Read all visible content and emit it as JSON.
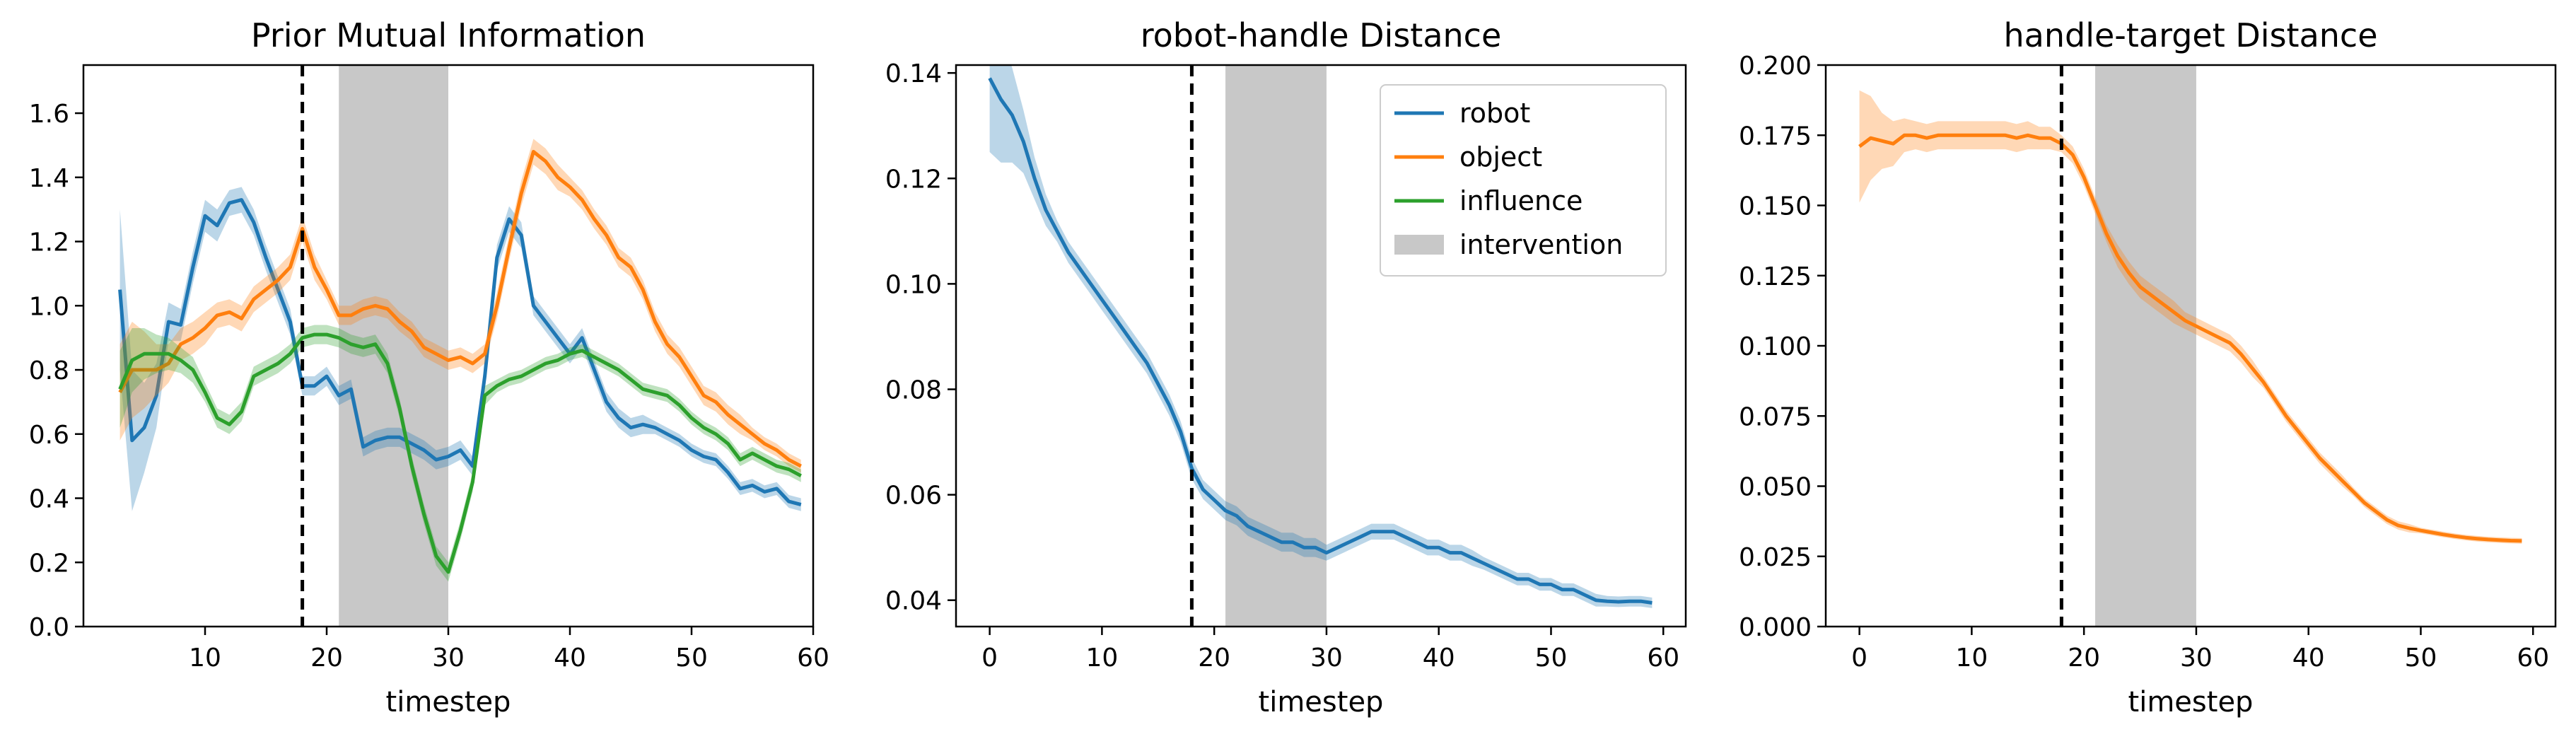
{
  "chart_data": [
    {
      "type": "line",
      "title": "Prior Mutual Information",
      "xlabel": "timestep",
      "ylabel": "",
      "xlim": [
        0,
        60
      ],
      "ylim": [
        0,
        1.75
      ],
      "xticks": [
        10,
        20,
        30,
        40,
        50,
        60
      ],
      "yticks": [
        0.0,
        0.2,
        0.4,
        0.6,
        0.8,
        1.0,
        1.2,
        1.4,
        1.6
      ],
      "ytick_labels": [
        "0.0",
        "0.2",
        "0.4",
        "0.6",
        "0.8",
        "1.0",
        "1.2",
        "1.4",
        "1.6"
      ],
      "grid": false,
      "vline": 18,
      "intervention_span": [
        21,
        30
      ],
      "series": [
        {
          "name": "robot",
          "color": "#1f77b4",
          "x": [
            3,
            4,
            5,
            6,
            7,
            8,
            9,
            10,
            11,
            12,
            13,
            14,
            15,
            16,
            17,
            18,
            19,
            20,
            21,
            22,
            23,
            24,
            25,
            26,
            27,
            28,
            29,
            30,
            31,
            32,
            33,
            34,
            35,
            36,
            37,
            38,
            39,
            40,
            41,
            42,
            43,
            44,
            45,
            46,
            47,
            48,
            49,
            50,
            51,
            52,
            53,
            54,
            55,
            56,
            57,
            58,
            59
          ],
          "y": [
            1.05,
            0.58,
            0.62,
            0.72,
            0.95,
            0.94,
            1.12,
            1.28,
            1.25,
            1.32,
            1.33,
            1.26,
            1.15,
            1.05,
            0.95,
            0.75,
            0.75,
            0.78,
            0.72,
            0.74,
            0.56,
            0.58,
            0.59,
            0.59,
            0.57,
            0.55,
            0.52,
            0.53,
            0.55,
            0.5,
            0.78,
            1.15,
            1.27,
            1.22,
            1.0,
            0.95,
            0.9,
            0.85,
            0.9,
            0.8,
            0.7,
            0.65,
            0.62,
            0.63,
            0.62,
            0.6,
            0.58,
            0.55,
            0.53,
            0.52,
            0.48,
            0.43,
            0.44,
            0.42,
            0.43,
            0.39,
            0.38
          ],
          "band": [
            0.25,
            0.22,
            0.14,
            0.1,
            0.06,
            0.05,
            0.05,
            0.05,
            0.05,
            0.04,
            0.04,
            0.04,
            0.04,
            0.04,
            0.04,
            0.03,
            0.03,
            0.03,
            0.03,
            0.03,
            0.03,
            0.03,
            0.03,
            0.03,
            0.03,
            0.03,
            0.03,
            0.03,
            0.03,
            0.03,
            0.03,
            0.04,
            0.04,
            0.04,
            0.03,
            0.03,
            0.03,
            0.03,
            0.03,
            0.03,
            0.03,
            0.03,
            0.03,
            0.03,
            0.02,
            0.02,
            0.02,
            0.02,
            0.02,
            0.02,
            0.02,
            0.02,
            0.02,
            0.02,
            0.02,
            0.02,
            0.02
          ]
        },
        {
          "name": "object",
          "color": "#ff7f0e",
          "x": [
            3,
            4,
            5,
            6,
            7,
            8,
            9,
            10,
            11,
            12,
            13,
            14,
            15,
            16,
            17,
            18,
            19,
            20,
            21,
            22,
            23,
            24,
            25,
            26,
            27,
            28,
            29,
            30,
            31,
            32,
            33,
            34,
            35,
            36,
            37,
            38,
            39,
            40,
            41,
            42,
            43,
            44,
            45,
            46,
            47,
            48,
            49,
            50,
            51,
            52,
            53,
            54,
            55,
            56,
            57,
            58,
            59
          ],
          "y": [
            0.73,
            0.8,
            0.8,
            0.8,
            0.82,
            0.88,
            0.9,
            0.93,
            0.97,
            0.98,
            0.96,
            1.02,
            1.05,
            1.08,
            1.12,
            1.24,
            1.12,
            1.05,
            0.97,
            0.97,
            0.99,
            1.0,
            0.99,
            0.95,
            0.92,
            0.87,
            0.85,
            0.83,
            0.84,
            0.82,
            0.85,
            1.0,
            1.18,
            1.35,
            1.48,
            1.45,
            1.4,
            1.37,
            1.33,
            1.27,
            1.22,
            1.15,
            1.12,
            1.05,
            0.95,
            0.88,
            0.84,
            0.78,
            0.72,
            0.7,
            0.66,
            0.63,
            0.6,
            0.57,
            0.55,
            0.52,
            0.5
          ],
          "band": [
            0.15,
            0.15,
            0.12,
            0.08,
            0.06,
            0.05,
            0.05,
            0.05,
            0.04,
            0.04,
            0.04,
            0.04,
            0.04,
            0.04,
            0.04,
            0.04,
            0.04,
            0.03,
            0.03,
            0.03,
            0.03,
            0.03,
            0.03,
            0.03,
            0.03,
            0.03,
            0.03,
            0.03,
            0.03,
            0.03,
            0.03,
            0.04,
            0.04,
            0.04,
            0.04,
            0.04,
            0.04,
            0.03,
            0.03,
            0.03,
            0.03,
            0.03,
            0.03,
            0.03,
            0.03,
            0.03,
            0.03,
            0.03,
            0.03,
            0.03,
            0.03,
            0.03,
            0.02,
            0.02,
            0.02,
            0.02,
            0.02
          ]
        },
        {
          "name": "influence",
          "color": "#2ca02c",
          "x": [
            3,
            4,
            5,
            6,
            7,
            8,
            9,
            10,
            11,
            12,
            13,
            14,
            15,
            16,
            17,
            18,
            19,
            20,
            21,
            22,
            23,
            24,
            25,
            26,
            27,
            28,
            29,
            30,
            31,
            32,
            33,
            34,
            35,
            36,
            37,
            38,
            39,
            40,
            41,
            42,
            43,
            44,
            45,
            46,
            47,
            48,
            49,
            50,
            51,
            52,
            53,
            54,
            55,
            56,
            57,
            58,
            59
          ],
          "y": [
            0.74,
            0.83,
            0.85,
            0.85,
            0.85,
            0.83,
            0.8,
            0.73,
            0.65,
            0.63,
            0.67,
            0.78,
            0.8,
            0.82,
            0.85,
            0.9,
            0.91,
            0.91,
            0.9,
            0.88,
            0.87,
            0.88,
            0.82,
            0.68,
            0.5,
            0.35,
            0.22,
            0.17,
            0.3,
            0.45,
            0.72,
            0.75,
            0.77,
            0.78,
            0.8,
            0.82,
            0.83,
            0.85,
            0.86,
            0.84,
            0.82,
            0.8,
            0.77,
            0.74,
            0.73,
            0.72,
            0.69,
            0.65,
            0.62,
            0.6,
            0.57,
            0.52,
            0.54,
            0.52,
            0.5,
            0.49,
            0.47
          ],
          "band": [
            0.12,
            0.1,
            0.08,
            0.06,
            0.05,
            0.04,
            0.04,
            0.03,
            0.03,
            0.03,
            0.03,
            0.03,
            0.03,
            0.03,
            0.03,
            0.03,
            0.03,
            0.03,
            0.03,
            0.03,
            0.03,
            0.03,
            0.03,
            0.03,
            0.03,
            0.03,
            0.03,
            0.03,
            0.03,
            0.03,
            0.03,
            0.02,
            0.02,
            0.02,
            0.02,
            0.02,
            0.02,
            0.02,
            0.02,
            0.02,
            0.02,
            0.02,
            0.02,
            0.02,
            0.02,
            0.02,
            0.02,
            0.02,
            0.02,
            0.02,
            0.02,
            0.02,
            0.02,
            0.02,
            0.02,
            0.02,
            0.02
          ]
        }
      ]
    },
    {
      "type": "line",
      "title": "robot-handle Distance",
      "xlabel": "timestep",
      "ylabel": "",
      "xlim": [
        -3,
        62
      ],
      "ylim": [
        0.035,
        0.1415
      ],
      "xticks": [
        0,
        10,
        20,
        30,
        40,
        50,
        60
      ],
      "yticks": [
        0.04,
        0.06,
        0.08,
        0.1,
        0.12,
        0.14
      ],
      "ytick_labels": [
        "0.04",
        "0.06",
        "0.08",
        "0.10",
        "0.12",
        "0.14"
      ],
      "grid": false,
      "vline": 18,
      "intervention_span": [
        21,
        30
      ],
      "legend": {
        "location": "top-right",
        "entries": [
          {
            "label": "robot",
            "color": "#1f77b4",
            "kind": "line"
          },
          {
            "label": "object",
            "color": "#ff7f0e",
            "kind": "line"
          },
          {
            "label": "influence",
            "color": "#2ca02c",
            "kind": "line"
          },
          {
            "label": "intervention",
            "color": "#c8c8c8",
            "kind": "patch"
          }
        ]
      },
      "series": [
        {
          "name": "robot",
          "color": "#1f77b4",
          "x": [
            0,
            1,
            2,
            3,
            4,
            5,
            6,
            7,
            8,
            9,
            10,
            11,
            12,
            13,
            14,
            15,
            16,
            17,
            18,
            19,
            20,
            21,
            22,
            23,
            24,
            25,
            26,
            27,
            28,
            29,
            30,
            31,
            32,
            33,
            34,
            35,
            36,
            37,
            38,
            39,
            40,
            41,
            42,
            43,
            44,
            45,
            46,
            47,
            48,
            49,
            50,
            51,
            52,
            53,
            54,
            55,
            56,
            57,
            58,
            59
          ],
          "y": [
            0.139,
            0.135,
            0.132,
            0.127,
            0.12,
            0.114,
            0.11,
            0.106,
            0.103,
            0.1,
            0.097,
            0.094,
            0.091,
            0.088,
            0.085,
            0.081,
            0.077,
            0.072,
            0.065,
            0.061,
            0.059,
            0.057,
            0.056,
            0.054,
            0.053,
            0.052,
            0.051,
            0.051,
            0.05,
            0.05,
            0.049,
            0.05,
            0.051,
            0.052,
            0.053,
            0.053,
            0.053,
            0.052,
            0.051,
            0.05,
            0.05,
            0.049,
            0.049,
            0.048,
            0.047,
            0.046,
            0.045,
            0.044,
            0.044,
            0.043,
            0.043,
            0.042,
            0.042,
            0.041,
            0.04,
            0.0398,
            0.0397,
            0.0398,
            0.0398,
            0.0395
          ],
          "band": [
            0.014,
            0.012,
            0.009,
            0.006,
            0.004,
            0.003,
            0.002,
            0.002,
            0.002,
            0.002,
            0.002,
            0.002,
            0.002,
            0.002,
            0.002,
            0.002,
            0.002,
            0.002,
            0.002,
            0.0018,
            0.0018,
            0.0018,
            0.0018,
            0.0018,
            0.0018,
            0.0018,
            0.0018,
            0.0018,
            0.0018,
            0.0018,
            0.0015,
            0.0015,
            0.0015,
            0.0015,
            0.0015,
            0.0015,
            0.0015,
            0.0015,
            0.0015,
            0.0015,
            0.0015,
            0.0015,
            0.0015,
            0.0015,
            0.0012,
            0.0012,
            0.0012,
            0.0012,
            0.0012,
            0.0012,
            0.0012,
            0.0012,
            0.0012,
            0.0012,
            0.0012,
            0.001,
            0.001,
            0.001,
            0.001,
            0.001
          ]
        }
      ]
    },
    {
      "type": "line",
      "title": "handle-target Distance",
      "xlabel": "timestep",
      "ylabel": "",
      "xlim": [
        -3,
        62
      ],
      "ylim": [
        0,
        0.2
      ],
      "xticks": [
        0,
        10,
        20,
        30,
        40,
        50,
        60
      ],
      "yticks": [
        0.0,
        0.025,
        0.05,
        0.075,
        0.1,
        0.125,
        0.15,
        0.175,
        0.2
      ],
      "ytick_labels": [
        "0.000",
        "0.025",
        "0.050",
        "0.075",
        "0.100",
        "0.125",
        "0.150",
        "0.175",
        "0.200"
      ],
      "grid": false,
      "vline": 18,
      "intervention_span": [
        21,
        30
      ],
      "series": [
        {
          "name": "object",
          "color": "#ff7f0e",
          "x": [
            0,
            1,
            2,
            3,
            4,
            5,
            6,
            7,
            8,
            9,
            10,
            11,
            12,
            13,
            14,
            15,
            16,
            17,
            18,
            19,
            20,
            21,
            22,
            23,
            24,
            25,
            26,
            27,
            28,
            29,
            30,
            31,
            32,
            33,
            34,
            35,
            36,
            37,
            38,
            39,
            40,
            41,
            42,
            43,
            44,
            45,
            46,
            47,
            48,
            49,
            50,
            51,
            52,
            53,
            54,
            55,
            56,
            57,
            58,
            59
          ],
          "y": [
            0.171,
            0.174,
            0.173,
            0.172,
            0.175,
            0.175,
            0.174,
            0.175,
            0.175,
            0.175,
            0.175,
            0.175,
            0.175,
            0.175,
            0.174,
            0.175,
            0.174,
            0.174,
            0.172,
            0.168,
            0.16,
            0.15,
            0.14,
            0.132,
            0.126,
            0.121,
            0.118,
            0.115,
            0.112,
            0.109,
            0.107,
            0.105,
            0.103,
            0.101,
            0.097,
            0.092,
            0.087,
            0.081,
            0.075,
            0.07,
            0.065,
            0.06,
            0.056,
            0.052,
            0.048,
            0.044,
            0.041,
            0.038,
            0.036,
            0.035,
            0.0342,
            0.0335,
            0.0328,
            0.0322,
            0.0317,
            0.0313,
            0.031,
            0.0308,
            0.0306,
            0.0305
          ],
          "band": [
            0.02,
            0.015,
            0.01,
            0.008,
            0.006,
            0.005,
            0.005,
            0.005,
            0.005,
            0.005,
            0.005,
            0.005,
            0.005,
            0.005,
            0.005,
            0.005,
            0.004,
            0.004,
            0.003,
            0.003,
            0.003,
            0.003,
            0.003,
            0.004,
            0.004,
            0.004,
            0.004,
            0.004,
            0.004,
            0.003,
            0.003,
            0.003,
            0.003,
            0.003,
            0.003,
            0.003,
            0.002,
            0.002,
            0.002,
            0.002,
            0.002,
            0.002,
            0.002,
            0.002,
            0.0015,
            0.0015,
            0.0015,
            0.0015,
            0.0015,
            0.0015,
            0.001,
            0.001,
            0.001,
            0.001,
            0.001,
            0.001,
            0.001,
            0.001,
            0.001,
            0.001
          ]
        }
      ]
    }
  ]
}
